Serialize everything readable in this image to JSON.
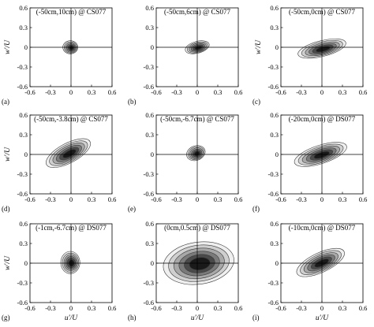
{
  "chart_data": [
    {
      "type": "contour",
      "panel_label": "(a)",
      "title": "(-50cm,10cm) @ CS077",
      "xlabel": "",
      "ylabel": "w'/U",
      "xlim": [
        -0.6,
        0.6
      ],
      "ylim": [
        -0.6,
        0.6
      ],
      "xticks": [
        "-0.6",
        "-0.3",
        "0",
        "0.3",
        "0.6"
      ],
      "yticks": [
        "0.6",
        "0.3",
        "0",
        "-0.3",
        "-0.6"
      ],
      "blob": {
        "cx": -0.01,
        "cy": 0.0,
        "rx": 0.11,
        "ry": 0.1,
        "angle": 0
      }
    },
    {
      "type": "contour",
      "panel_label": "(b)",
      "title": "(-50cm,6cm) @ CS077",
      "xlabel": "",
      "ylabel": "",
      "xlim": [
        -0.6,
        0.6
      ],
      "ylim": [
        -0.6,
        0.6
      ],
      "xticks": [
        "-0.6",
        "-0.3",
        "0",
        "0.3",
        "0.6"
      ],
      "yticks": [
        "0.6",
        "0.3",
        "0",
        "-0.3",
        "-0.6"
      ],
      "blob": {
        "cx": 0.0,
        "cy": 0.0,
        "rx": 0.18,
        "ry": 0.09,
        "angle": -15
      }
    },
    {
      "type": "contour",
      "panel_label": "(c)",
      "title": "(-50cm,0cm) @ CS077",
      "xlabel": "",
      "ylabel": "w'/U",
      "xlim": [
        -0.6,
        0.6
      ],
      "ylim": [
        -0.6,
        0.6
      ],
      "xticks": [
        "-0.6",
        "-0.3",
        "0",
        "0.3",
        "0.6"
      ],
      "yticks": [
        "0.6",
        "0.3",
        "0",
        "-0.3",
        "-0.6"
      ],
      "blob": {
        "cx": 0.0,
        "cy": -0.02,
        "rx": 0.36,
        "ry": 0.12,
        "angle": -14
      }
    },
    {
      "type": "contour",
      "panel_label": "(d)",
      "title": "(-50cm,-3.8cm) @ CS077",
      "xlabel": "",
      "ylabel": "w'/U",
      "xlim": [
        -0.6,
        0.6
      ],
      "ylim": [
        -0.6,
        0.6
      ],
      "xticks": [
        "-0.6",
        "-0.3",
        "0",
        "0.3",
        "0.6"
      ],
      "yticks": [
        "0.6",
        "0.3",
        "0",
        "-0.3",
        "-0.6"
      ],
      "blob": {
        "cx": -0.04,
        "cy": 0.02,
        "rx": 0.36,
        "ry": 0.15,
        "angle": -28
      }
    },
    {
      "type": "contour",
      "panel_label": "(e)",
      "title": "(-50cm,-6.7cm) @ CS077",
      "xlabel": "",
      "ylabel": "",
      "xlim": [
        -0.6,
        0.6
      ],
      "ylim": [
        -0.6,
        0.6
      ],
      "xticks": [
        "-0.6",
        "-0.3",
        "0",
        "0.3",
        "0.6"
      ],
      "yticks": [
        "0.6",
        "0.3",
        "0",
        "-0.3",
        "-0.6"
      ],
      "blob": {
        "cx": -0.02,
        "cy": 0.02,
        "rx": 0.14,
        "ry": 0.11,
        "angle": -20
      }
    },
    {
      "type": "contour",
      "panel_label": "(f)",
      "title": "(-20cm,0cm) @ DS077",
      "xlabel": "",
      "ylabel": "",
      "xlim": [
        -0.6,
        0.6
      ],
      "ylim": [
        -0.6,
        0.6
      ],
      "xticks": [
        "-0.6",
        "-0.3",
        "0",
        "0.3",
        "0.6"
      ],
      "yticks": [
        "0.6",
        "0.3",
        "0",
        "-0.3",
        "-0.6"
      ],
      "blob": {
        "cx": -0.02,
        "cy": 0.0,
        "rx": 0.4,
        "ry": 0.14,
        "angle": -18
      }
    },
    {
      "type": "contour",
      "panel_label": "(g)",
      "title": "(-1cm,-6.7cm) @ DS077",
      "xlabel": "u'/U",
      "ylabel": "w'/U",
      "xlim": [
        -0.6,
        0.6
      ],
      "ylim": [
        -0.6,
        0.6
      ],
      "xticks": [
        "-0.6",
        "-0.3",
        "0",
        "0.3",
        "0.6"
      ],
      "yticks": [
        "0.6",
        "0.3",
        "0",
        "-0.3",
        "-0.6"
      ],
      "blob": {
        "cx": -0.01,
        "cy": 0.01,
        "rx": 0.14,
        "ry": 0.17,
        "angle": 0
      }
    },
    {
      "type": "contour",
      "panel_label": "(h)",
      "title": "(0cm,0.5cm) @ DS077",
      "xlabel": "u'/U",
      "ylabel": "",
      "xlim": [
        -0.6,
        0.6
      ],
      "ylim": [
        -0.6,
        0.6
      ],
      "xticks": [
        "-0.6",
        "-0.3",
        "0",
        "0.3",
        "0.6"
      ],
      "yticks": [
        "0.6",
        "0.3",
        "0",
        "-0.3",
        "-0.6"
      ],
      "blob": {
        "cx": 0.02,
        "cy": 0.0,
        "rx": 0.52,
        "ry": 0.32,
        "angle": -8
      }
    },
    {
      "type": "contour",
      "panel_label": "(i)",
      "title": "(-10cm,0cm) @ DS077",
      "xlabel": "u'/U",
      "ylabel": "",
      "xlim": [
        -0.6,
        0.6
      ],
      "ylim": [
        -0.6,
        0.6
      ],
      "xticks": [
        "-0.6",
        "-0.3",
        "0",
        "0.3",
        "0.6"
      ],
      "yticks": [
        "0.6",
        "0.3",
        "0",
        "-0.3",
        "-0.6"
      ],
      "blob": {
        "cx": -0.02,
        "cy": 0.01,
        "rx": 0.38,
        "ry": 0.15,
        "angle": -25
      }
    }
  ],
  "colors": {
    "levels": [
      "#efefef",
      "#cfcfcf",
      "#a8a8a8",
      "#7a7a7a",
      "#4a4a4a",
      "#1a1a1a"
    ],
    "outline": "#3a3a3a",
    "axis": "#000000"
  }
}
